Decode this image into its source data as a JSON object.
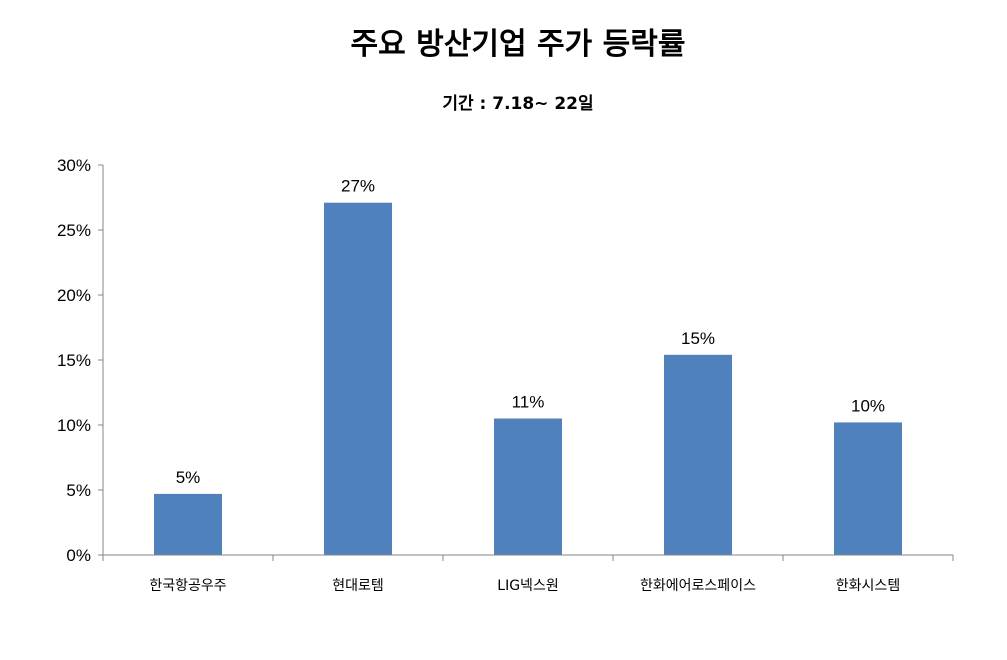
{
  "chart_data": {
    "type": "bar",
    "title": "주요 방산기업 주가 등락률",
    "subtitle": "기간 : 7.18~ 22일",
    "categories": [
      "한국항공우주",
      "현대로템",
      "LIG넥스원",
      "한화에어로스페이스",
      "한화시스템"
    ],
    "values": [
      4.7,
      27.1,
      10.5,
      15.4,
      10.2
    ],
    "data_labels": [
      "5%",
      "27%",
      "11%",
      "15%",
      "10%"
    ],
    "ylim": [
      0,
      30
    ],
    "yticks": [
      0,
      5,
      10,
      15,
      20,
      25,
      30
    ],
    "ytick_labels": [
      "0%",
      "5%",
      "10%",
      "15%",
      "20%",
      "25%",
      "30%"
    ],
    "xlabel": "",
    "ylabel": "",
    "grid": false,
    "legend": "none",
    "bar_color": "#4F81BD"
  }
}
